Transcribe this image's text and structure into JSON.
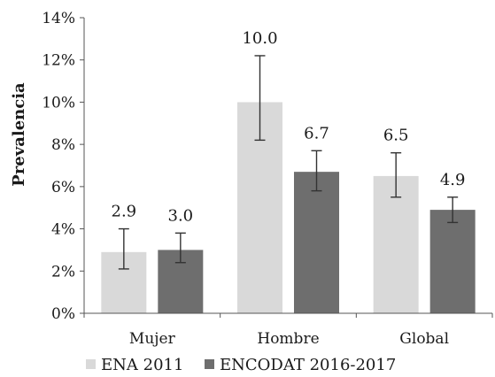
{
  "chart_data": {
    "type": "bar",
    "ylabel": "Prevalencia",
    "xlabel": "",
    "title": "",
    "ylim": [
      0,
      14
    ],
    "y_ticks": [
      "0%",
      "2%",
      "4%",
      "6%",
      "8%",
      "10%",
      "12%",
      "14%"
    ],
    "y_tick_values": [
      0,
      2,
      4,
      6,
      8,
      10,
      12,
      14
    ],
    "categories": [
      "Mujer",
      "Hombre",
      "Global"
    ],
    "grid": false,
    "legend_position": "bottom",
    "series": [
      {
        "name": "ENA 2011",
        "color": "#d9d9d9",
        "values": [
          2.9,
          10.0,
          6.5
        ],
        "labels": [
          "2.9",
          "10.0",
          "6.5"
        ],
        "error_low": [
          2.1,
          8.2,
          5.5
        ],
        "error_high": [
          4.0,
          12.2,
          7.6
        ]
      },
      {
        "name": "ENCODAT 2016-2017",
        "color": "#6e6e6e",
        "values": [
          3.0,
          6.7,
          4.9
        ],
        "labels": [
          "3.0",
          "6.7",
          "4.9"
        ],
        "error_low": [
          2.4,
          5.8,
          4.3
        ],
        "error_high": [
          3.8,
          7.7,
          5.5
        ]
      }
    ]
  }
}
